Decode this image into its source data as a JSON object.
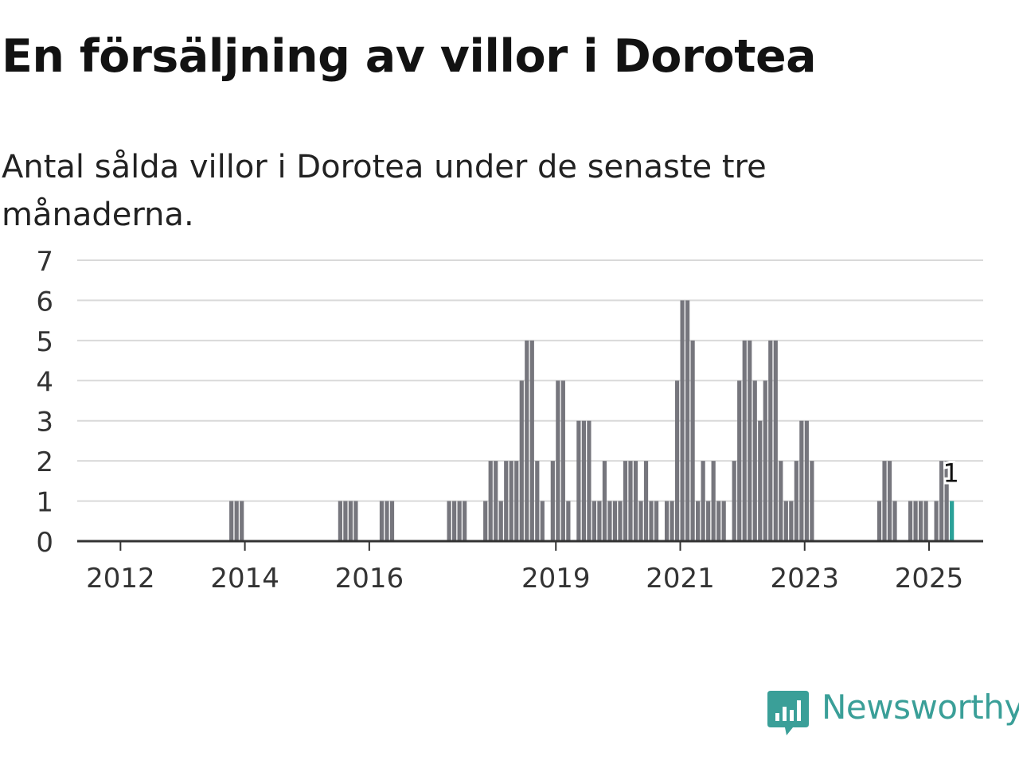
{
  "title": "En försäljning av villor i Dorotea",
  "subtitle": "Antal sålda villor i Dorotea under de senaste tre månaderna.",
  "brand": {
    "name": "Newsworthy",
    "color": "#3a9f98",
    "icon": "newsworthy-logo-icon"
  },
  "chart_data": {
    "type": "bar",
    "title": "En försäljning av villor i Dorotea",
    "subtitle": "Antal sålda villor i Dorotea under de senaste tre månaderna.",
    "xlabel": "",
    "ylabel": "",
    "ylim": [
      0,
      7
    ],
    "yticks": [
      "0",
      "1",
      "2",
      "3",
      "4",
      "5",
      "6",
      "7"
    ],
    "x_start": "2011-03",
    "x_end": "2025-03",
    "xticks": [
      {
        "label": "2012",
        "date": "2012-01"
      },
      {
        "label": "2014",
        "date": "2014-01"
      },
      {
        "label": "2016",
        "date": "2016-01"
      },
      {
        "label": "2019",
        "date": "2019-01"
      },
      {
        "label": "2021",
        "date": "2021-01"
      },
      {
        "label": "2023",
        "date": "2023-01"
      },
      {
        "label": "2025",
        "date": "2025-01"
      }
    ],
    "bar_color": "#76767d",
    "highlight_color": "#2aa198",
    "grid": true,
    "series": [
      {
        "values": [
          [
            "2013-10",
            1
          ],
          [
            "2013-11",
            1
          ],
          [
            "2013-12",
            1
          ],
          [
            "2015-07",
            1
          ],
          [
            "2015-08",
            1
          ],
          [
            "2015-09",
            1
          ],
          [
            "2015-10",
            1
          ],
          [
            "2016-03",
            1
          ],
          [
            "2016-04",
            1
          ],
          [
            "2016-05",
            1
          ],
          [
            "2017-04",
            1
          ],
          [
            "2017-05",
            1
          ],
          [
            "2017-06",
            1
          ],
          [
            "2017-07",
            1
          ],
          [
            "2017-11",
            1
          ],
          [
            "2017-12",
            2
          ],
          [
            "2018-01",
            2
          ],
          [
            "2018-02",
            1
          ],
          [
            "2018-03",
            2
          ],
          [
            "2018-04",
            2
          ],
          [
            "2018-05",
            2
          ],
          [
            "2018-06",
            4
          ],
          [
            "2018-07",
            5
          ],
          [
            "2018-08",
            5
          ],
          [
            "2018-09",
            2
          ],
          [
            "2018-10",
            1
          ],
          [
            "2018-12",
            2
          ],
          [
            "2019-01",
            4
          ],
          [
            "2019-02",
            4
          ],
          [
            "2019-03",
            1
          ],
          [
            "2019-05",
            3
          ],
          [
            "2019-06",
            3
          ],
          [
            "2019-07",
            3
          ],
          [
            "2019-08",
            1
          ],
          [
            "2019-09",
            1
          ],
          [
            "2019-10",
            2
          ],
          [
            "2019-11",
            1
          ],
          [
            "2019-12",
            1
          ],
          [
            "2020-01",
            1
          ],
          [
            "2020-02",
            2
          ],
          [
            "2020-03",
            2
          ],
          [
            "2020-04",
            2
          ],
          [
            "2020-05",
            1
          ],
          [
            "2020-06",
            2
          ],
          [
            "2020-07",
            1
          ],
          [
            "2020-08",
            1
          ],
          [
            "2020-10",
            1
          ],
          [
            "2020-11",
            1
          ],
          [
            "2020-12",
            4
          ],
          [
            "2021-01",
            6
          ],
          [
            "2021-02",
            6
          ],
          [
            "2021-03",
            5
          ],
          [
            "2021-04",
            1
          ],
          [
            "2021-05",
            2
          ],
          [
            "2021-06",
            1
          ],
          [
            "2021-07",
            2
          ],
          [
            "2021-08",
            1
          ],
          [
            "2021-09",
            1
          ],
          [
            "2021-11",
            2
          ],
          [
            "2021-12",
            4
          ],
          [
            "2022-01",
            5
          ],
          [
            "2022-02",
            5
          ],
          [
            "2022-03",
            4
          ],
          [
            "2022-04",
            3
          ],
          [
            "2022-05",
            4
          ],
          [
            "2022-06",
            5
          ],
          [
            "2022-07",
            5
          ],
          [
            "2022-08",
            2
          ],
          [
            "2022-09",
            1
          ],
          [
            "2022-10",
            1
          ],
          [
            "2022-11",
            2
          ],
          [
            "2022-12",
            3
          ],
          [
            "2023-01",
            3
          ],
          [
            "2023-02",
            2
          ],
          [
            "2024-03",
            1
          ],
          [
            "2024-04",
            2
          ],
          [
            "2024-05",
            2
          ],
          [
            "2024-06",
            1
          ],
          [
            "2024-09",
            1
          ],
          [
            "2024-10",
            1
          ],
          [
            "2024-11",
            1
          ],
          [
            "2024-12",
            1
          ],
          [
            "2025-02",
            1
          ],
          [
            "2025-03",
            2
          ],
          [
            "2025-04",
            2
          ],
          [
            "2025-05",
            1
          ]
        ]
      }
    ],
    "annotation": {
      "date": "2025-05",
      "value": 1,
      "label": "1"
    }
  }
}
